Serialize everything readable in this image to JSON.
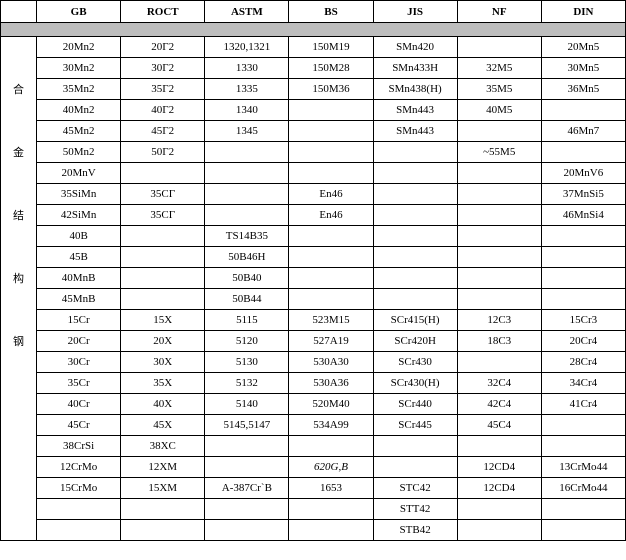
{
  "headers": [
    "",
    "GB",
    "ROCT",
    "ASTM",
    "BS",
    "JIS",
    "NF",
    "DIN"
  ],
  "side_labels": [
    "合",
    "金",
    "结",
    "构",
    "钢"
  ],
  "rows": [
    {
      "side": "",
      "gb": "20Mn2",
      "roct": "20Г2",
      "astm": "1320,1321",
      "bs": "150M19",
      "jis": "SMn420",
      "nf": "",
      "din": "20Mn5"
    },
    {
      "side": "",
      "gb": "30Mn2",
      "roct": "30Г2",
      "astm": "1330",
      "bs": "150M28",
      "jis": "SMn433H",
      "nf": "32M5",
      "din": "30Mn5"
    },
    {
      "side": "合",
      "gb": "35Mn2",
      "roct": "35Г2",
      "astm": "1335",
      "bs": "150M36",
      "jis": "SMn438(H)",
      "nf": "35M5",
      "din": "36Mn5"
    },
    {
      "side": "",
      "gb": "40Mn2",
      "roct": "40Г2",
      "astm": "1340",
      "bs": "",
      "jis": "SMn443",
      "nf": "40M5",
      "din": ""
    },
    {
      "side": "",
      "gb": "45Mn2",
      "roct": "45Г2",
      "astm": "1345",
      "bs": "",
      "jis": "SMn443",
      "nf": "",
      "din": "46Mn7"
    },
    {
      "side": "金",
      "gb": "50Mn2",
      "roct": "50Г2",
      "astm": "",
      "bs": "",
      "jis": "",
      "nf": "~55M5",
      "din": ""
    },
    {
      "side": "",
      "gb": "20MnV",
      "roct": "",
      "astm": "",
      "bs": "",
      "jis": "",
      "nf": "",
      "din": "20MnV6"
    },
    {
      "side": "",
      "gb": "35SiMn",
      "roct": "35CГ",
      "astm": "",
      "bs": "En46",
      "jis": "",
      "nf": "",
      "din": "37MnSi5"
    },
    {
      "side": "结",
      "gb": "42SiMn",
      "roct": "35CГ",
      "astm": "",
      "bs": "En46",
      "jis": "",
      "nf": "",
      "din": "46MnSi4"
    },
    {
      "side": "",
      "gb": "40B",
      "roct": "",
      "astm": "TS14B35",
      "bs": "",
      "jis": "",
      "nf": "",
      "din": ""
    },
    {
      "side": "",
      "gb": "45B",
      "roct": "",
      "astm": "50B46H",
      "bs": "",
      "jis": "",
      "nf": "",
      "din": ""
    },
    {
      "side": "构",
      "gb": "40MnB",
      "roct": "",
      "astm": "50B40",
      "bs": "",
      "jis": "",
      "nf": "",
      "din": ""
    },
    {
      "side": "",
      "gb": "45MnB",
      "roct": "",
      "astm": "50B44",
      "bs": "",
      "jis": "",
      "nf": "",
      "din": ""
    },
    {
      "side": "",
      "gb": "15Cr",
      "roct": "15X",
      "astm": "5115",
      "bs": "523M15",
      "jis": "SCr415(H)",
      "nf": "12C3",
      "din": "15Cr3"
    },
    {
      "side": "钢",
      "gb": "20Cr",
      "roct": "20X",
      "astm": "5120",
      "bs": "527A19",
      "jis": "SCr420H",
      "nf": "18C3",
      "din": "20Cr4"
    },
    {
      "side": "",
      "gb": "30Cr",
      "roct": "30X",
      "astm": "5130",
      "bs": "530A30",
      "jis": "SCr430",
      "nf": "",
      "din": "28Cr4"
    },
    {
      "side": "",
      "gb": "35Cr",
      "roct": "35X",
      "astm": "5132",
      "bs": "530A36",
      "jis": "SCr430(H)",
      "nf": "32C4",
      "din": "34Cr4"
    },
    {
      "side": "",
      "gb": "40Cr",
      "roct": "40X",
      "astm": "5140",
      "bs": "520M40",
      "jis": "SCr440",
      "nf": "42C4",
      "din": "41Cr4"
    },
    {
      "side": "",
      "gb": "45Cr",
      "roct": "45X",
      "astm": "5145,5147",
      "bs": "534A99",
      "jis": "SCr445",
      "nf": "45C4",
      "din": ""
    },
    {
      "side": "",
      "gb": "38CrSi",
      "roct": "38XC",
      "astm": "",
      "bs": "",
      "jis": "",
      "nf": "",
      "din": ""
    },
    {
      "side": "",
      "gb": "12CrMo",
      "roct": "12XM",
      "astm": "",
      "bs": "620G,B",
      "jis": "",
      "nf": "12CD4",
      "din": "13CrMo44",
      "bs_italic": true
    },
    {
      "side": "",
      "gb": "15CrMo",
      "roct": "15XM",
      "astm": "A-387Cr`B",
      "bs": "1653",
      "jis": "STC42",
      "nf": "12CD4",
      "din": "16CrMo44"
    },
    {
      "side": "",
      "gb": "",
      "roct": "",
      "astm": "",
      "bs": "",
      "jis": "STT42",
      "nf": "",
      "din": ""
    },
    {
      "side": "",
      "gb": "",
      "roct": "",
      "astm": "",
      "bs": "",
      "jis": "STB42",
      "nf": "",
      "din": ""
    }
  ],
  "colors": {
    "shade": "#bdbdbd",
    "border": "#000000",
    "bg": "#ffffff"
  }
}
